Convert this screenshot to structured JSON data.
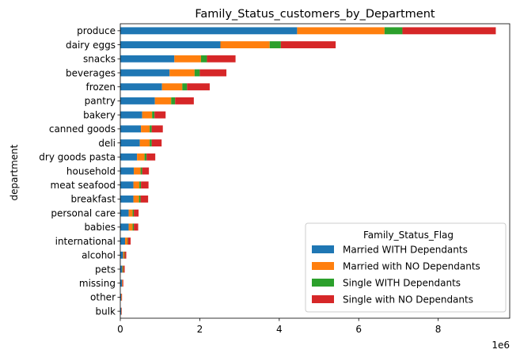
{
  "chart_data": {
    "type": "bar",
    "orientation": "horizontal",
    "stacked": true,
    "title": "Family_Status_customers_by_Department",
    "xlabel": "",
    "ylabel": "department",
    "x_offset_label": "1e6",
    "xlim": [
      0,
      9.8
    ],
    "x_ticks": [
      "0",
      "2",
      "4",
      "6",
      "8"
    ],
    "x_unit_multiplier": 1000000,
    "grid": false,
    "legend_title": "Family_Status_Flag",
    "legend_position": "lower-right",
    "categories": [
      "produce",
      "dairy eggs",
      "snacks",
      "beverages",
      "frozen",
      "pantry",
      "bakery",
      "canned goods",
      "deli",
      "dry goods pasta",
      "household",
      "meat seafood",
      "breakfast",
      "personal care",
      "babies",
      "international",
      "alcohol",
      "pets",
      "missing",
      "other",
      "bulk"
    ],
    "series": [
      {
        "name": "Married WITH Dependants",
        "color": "#1f77b4",
        "values": [
          4.45,
          2.52,
          1.36,
          1.24,
          1.05,
          0.87,
          0.55,
          0.52,
          0.49,
          0.42,
          0.34,
          0.33,
          0.33,
          0.21,
          0.21,
          0.12,
          0.07,
          0.05,
          0.04,
          0.02,
          0.02
        ]
      },
      {
        "name": "Married with NO Dependants",
        "color": "#ff7f0e",
        "values": [
          2.2,
          1.24,
          0.67,
          0.63,
          0.51,
          0.41,
          0.25,
          0.22,
          0.25,
          0.19,
          0.17,
          0.15,
          0.14,
          0.1,
          0.1,
          0.06,
          0.03,
          0.02,
          0.01,
          0.01,
          0.005
        ]
      },
      {
        "name": "Single WITH Dependants",
        "color": "#2ca02c",
        "values": [
          0.45,
          0.28,
          0.15,
          0.13,
          0.12,
          0.1,
          0.06,
          0.05,
          0.05,
          0.05,
          0.04,
          0.04,
          0.04,
          0.03,
          0.03,
          0.01,
          0.01,
          0.01,
          0.005,
          0.003,
          0.002
        ]
      },
      {
        "name": "Single with NO Dependants",
        "color": "#d62728",
        "values": [
          2.35,
          1.38,
          0.72,
          0.67,
          0.57,
          0.47,
          0.28,
          0.28,
          0.25,
          0.22,
          0.17,
          0.19,
          0.19,
          0.12,
          0.11,
          0.07,
          0.04,
          0.03,
          0.02,
          0.01,
          0.01
        ]
      }
    ]
  }
}
